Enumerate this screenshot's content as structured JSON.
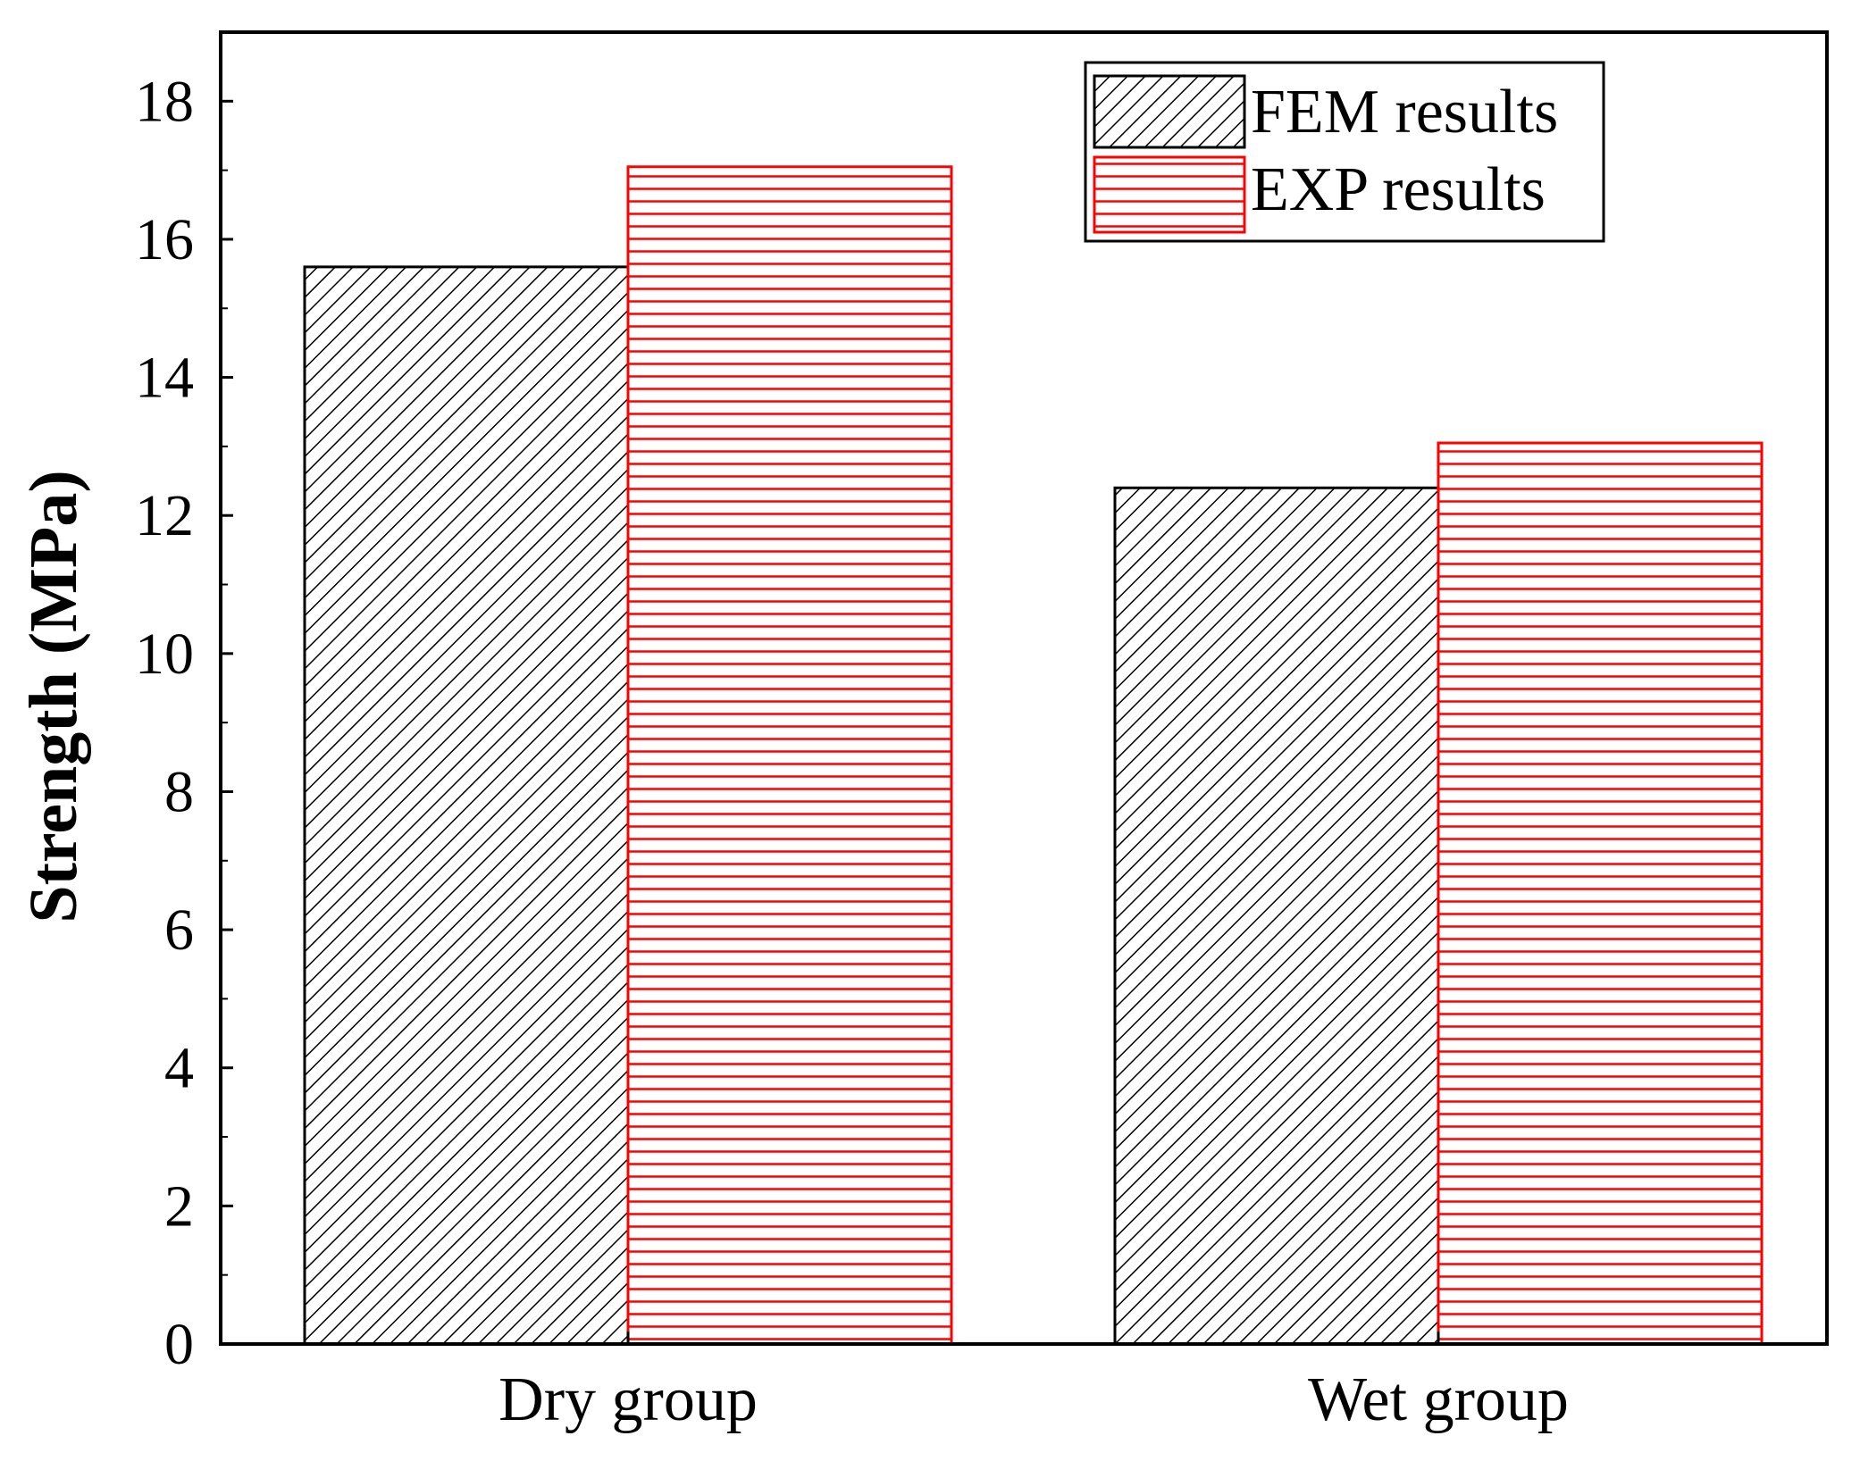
{
  "chart_data": {
    "type": "bar",
    "title": "",
    "xlabel": "",
    "ylabel": "Strength (MPa)",
    "ylim": [
      0,
      19
    ],
    "yticks": [
      0,
      2,
      4,
      6,
      8,
      10,
      12,
      14,
      16,
      18
    ],
    "yticks_labels": [
      "0",
      "2",
      "4",
      "6",
      "8",
      "10",
      "12",
      "14",
      "16",
      "18"
    ],
    "categories": [
      "Dry group",
      "Wet group"
    ],
    "series": [
      {
        "name": "FEM results",
        "values": [
          15.6,
          12.4
        ],
        "color": "#000000",
        "pattern": "diagonal-hatch"
      },
      {
        "name": "EXP results",
        "values": [
          17.05,
          13.05
        ],
        "color": "#ff0000",
        "pattern": "horizontal-lines"
      }
    ],
    "legend_position": "top-right",
    "grid": false
  }
}
